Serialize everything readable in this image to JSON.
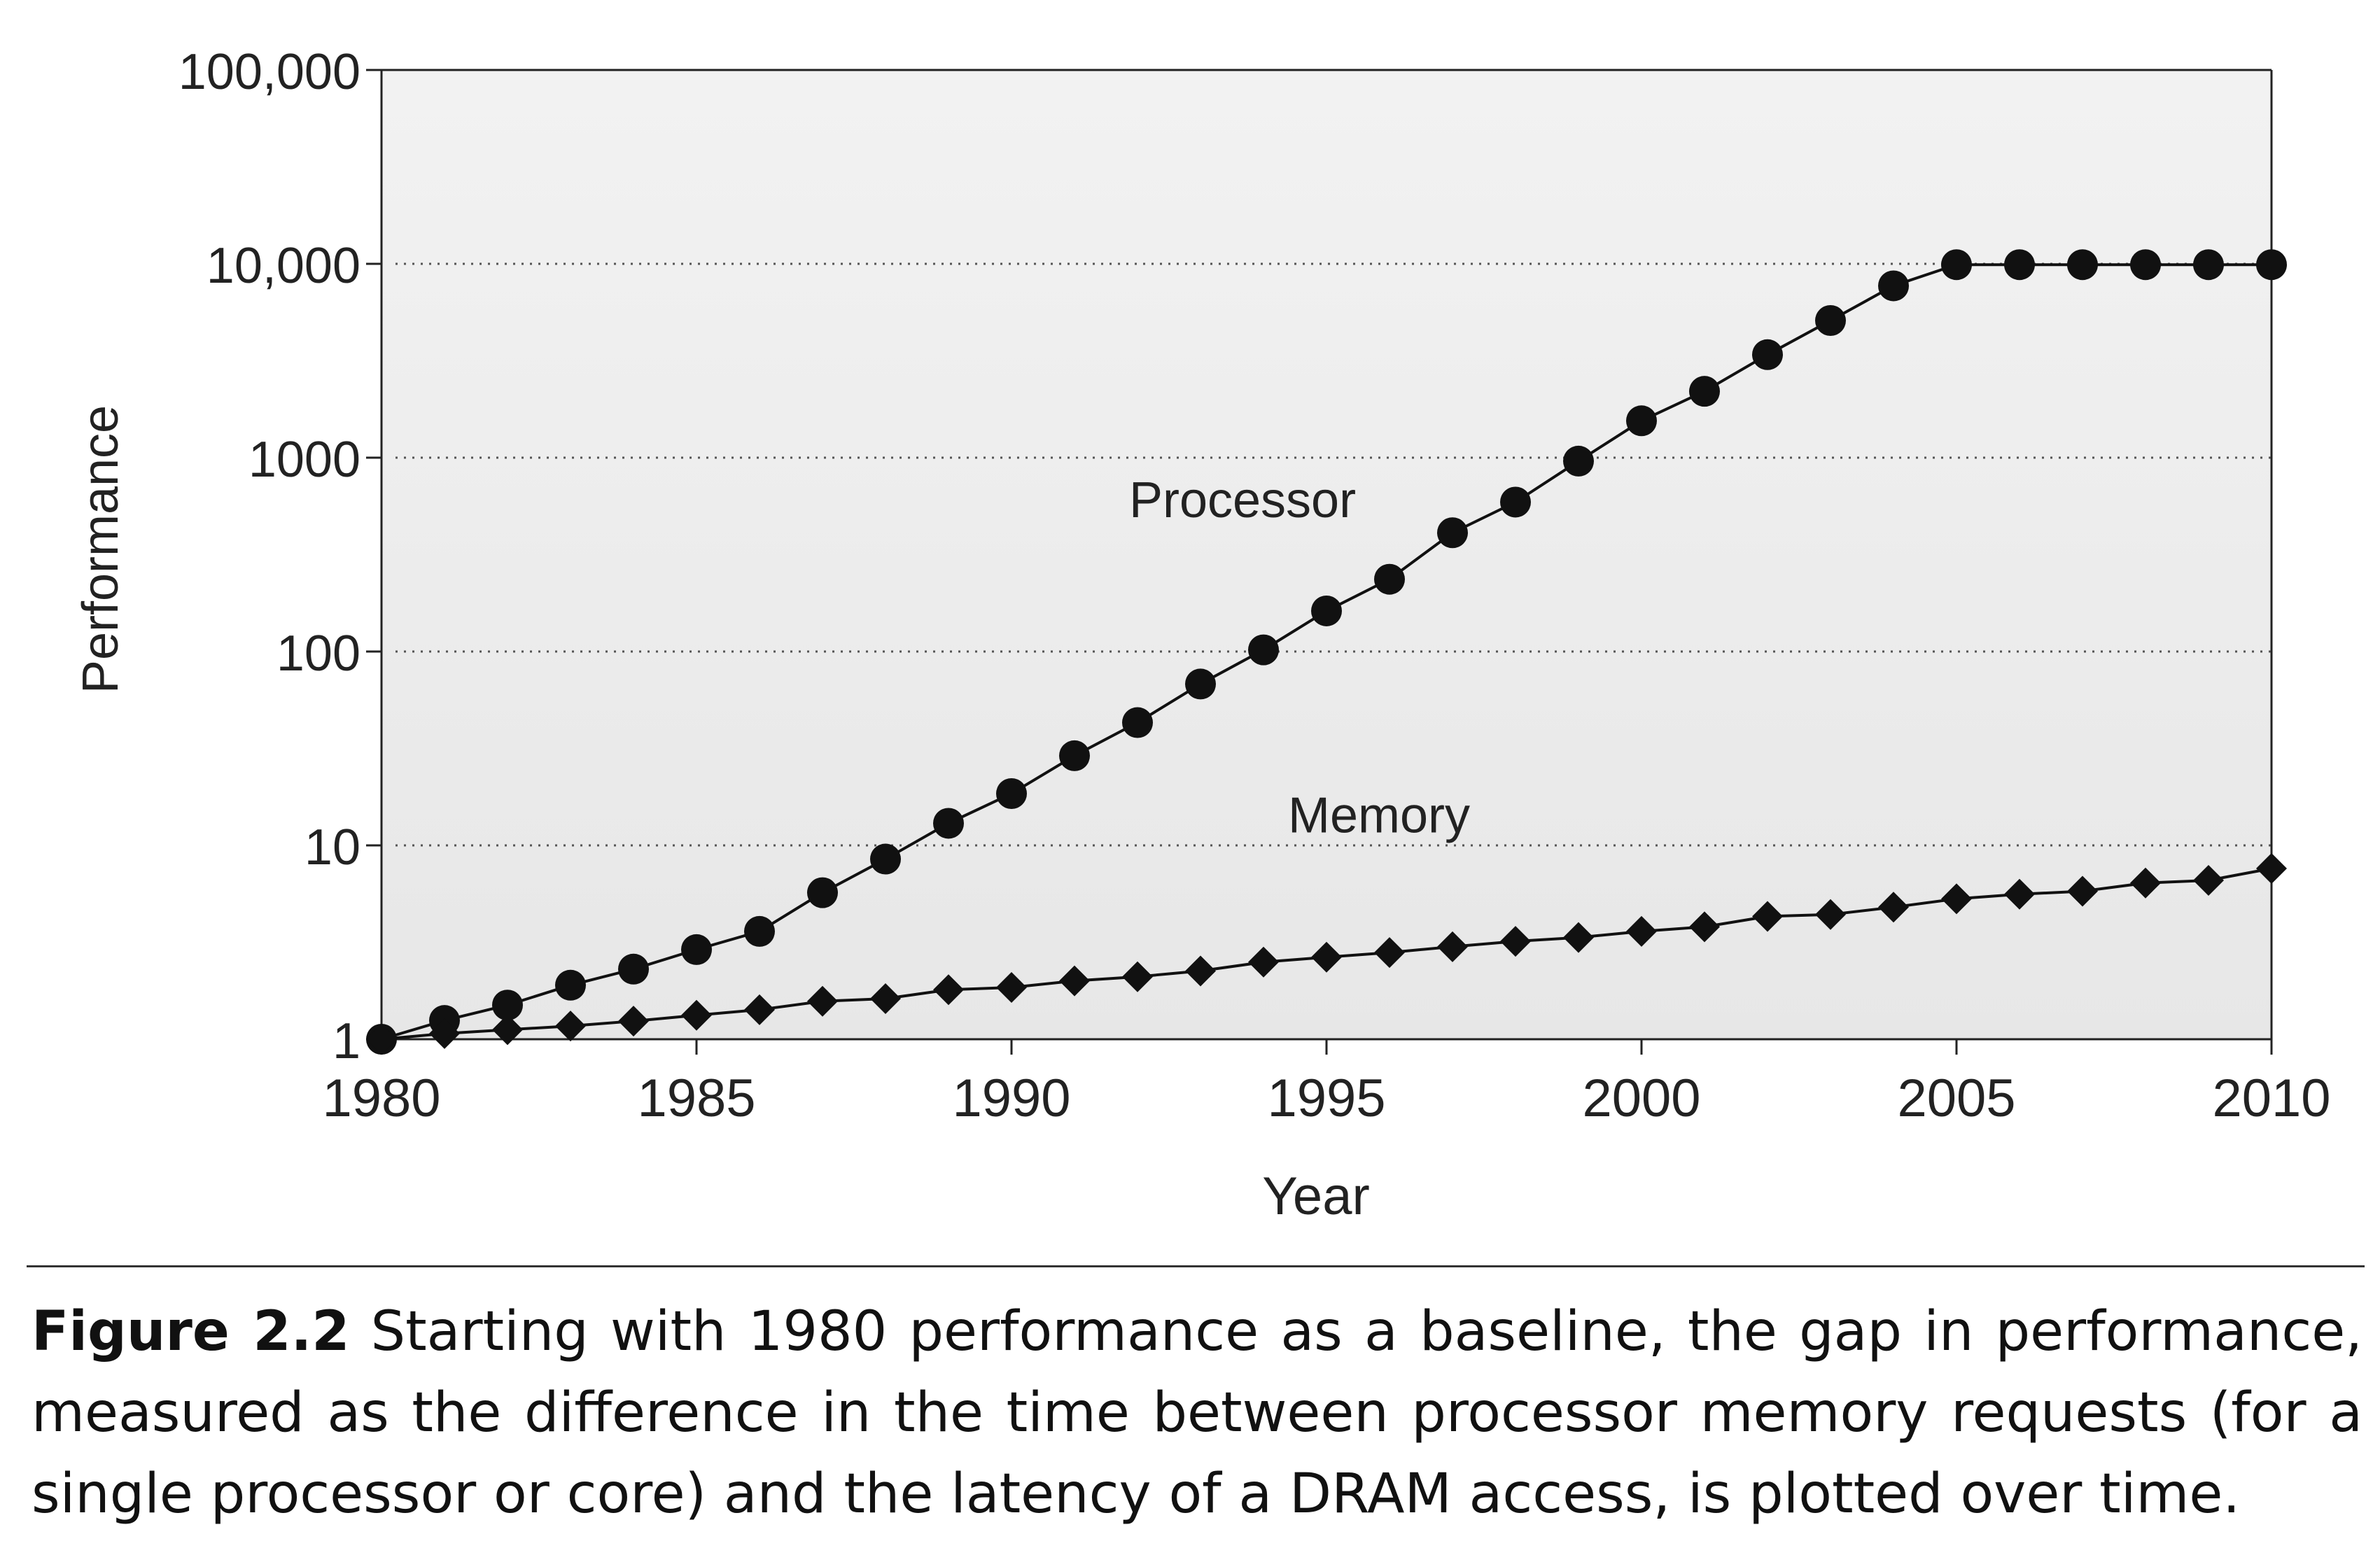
{
  "chart_data": {
    "type": "line",
    "xlabel": "Year",
    "ylabel": "Performance",
    "xlim": [
      1980,
      2010
    ],
    "ylim": [
      1,
      100000
    ],
    "yscale": "log",
    "x_ticks": [
      "1980",
      "1985",
      "1990",
      "1995",
      "2000",
      "2005",
      "2010"
    ],
    "y_ticks": [
      "1",
      "10",
      "100",
      "1000",
      "10,000",
      "100,000"
    ],
    "grid": "horizontal dotted at 10, 100, 1000, 10,000",
    "legend": "none (series labeled inline)",
    "x": [
      1980,
      1981,
      1982,
      1983,
      1984,
      1985,
      1986,
      1987,
      1988,
      1989,
      1990,
      1991,
      1992,
      1993,
      1994,
      1995,
      1996,
      1997,
      1998,
      1999,
      2000,
      2001,
      2002,
      2003,
      2004,
      2005,
      2006,
      2007,
      2008,
      2009,
      2010
    ],
    "series": [
      {
        "name": "Processor",
        "marker": "circle",
        "values": [
          1,
          1.25,
          1.5,
          1.9,
          2.3,
          2.9,
          3.6,
          5.7,
          8.5,
          13,
          18.5,
          29,
          43,
          68,
          102,
          162,
          236,
          410,
          590,
          960,
          1550,
          2200,
          3400,
          5100,
          7700,
          9900,
          9900,
          9900,
          9900,
          9900,
          9900
        ]
      },
      {
        "name": "Memory",
        "marker": "diamond",
        "values": [
          1,
          1.07,
          1.12,
          1.17,
          1.24,
          1.33,
          1.42,
          1.57,
          1.62,
          1.8,
          1.85,
          2.0,
          2.1,
          2.25,
          2.5,
          2.65,
          2.8,
          3.0,
          3.2,
          3.35,
          3.6,
          3.8,
          4.3,
          4.4,
          4.8,
          5.3,
          5.6,
          5.8,
          6.4,
          6.6,
          7.6
        ]
      }
    ]
  },
  "caption": {
    "label": "Figure 2.2",
    "text": "Starting with 1980 performance as a baseline, the gap in performance, measured as the difference in the time between processor memory requests (for a single processor or core) and the latency of a DRAM access, is plotted over time."
  }
}
